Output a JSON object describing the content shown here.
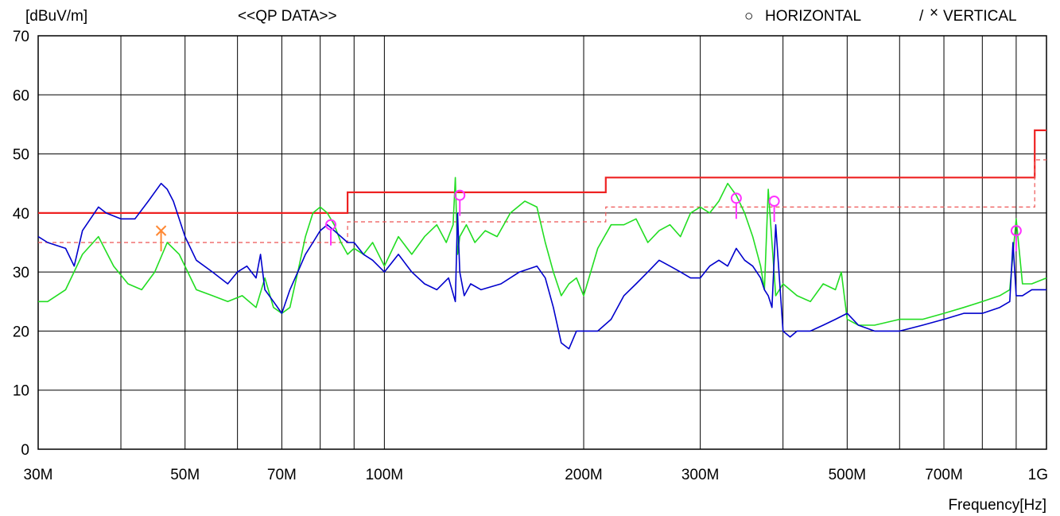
{
  "chart_data": {
    "type": "line",
    "title": "<<QP DATA>>",
    "ylabel": "[dBuV/m]",
    "xlabel": "Frequency[Hz]",
    "x_scale": "log",
    "xlim_mhz": [
      30,
      1000
    ],
    "ylim": [
      0,
      70
    ],
    "y_ticks": [
      0,
      10,
      20,
      30,
      40,
      50,
      60,
      70
    ],
    "x_tick_labels": [
      {
        "mhz": 30,
        "label": "30M"
      },
      {
        "mhz": 50,
        "label": "50M"
      },
      {
        "mhz": 70,
        "label": "70M"
      },
      {
        "mhz": 100,
        "label": "100M"
      },
      {
        "mhz": 200,
        "label": "200M"
      },
      {
        "mhz": 300,
        "label": "300M"
      },
      {
        "mhz": 500,
        "label": "500M"
      },
      {
        "mhz": 700,
        "label": "700M"
      },
      {
        "mhz": 1000,
        "label": "1G"
      }
    ],
    "x_gridlines_mhz": [
      40,
      50,
      60,
      70,
      80,
      90,
      100,
      200,
      300,
      400,
      500,
      600,
      700,
      800,
      900
    ],
    "grid": true,
    "legend": {
      "placement": "top-right",
      "entries": [
        {
          "symbol": "○",
          "label": "HORIZONTAL",
          "color": "#22dd22"
        },
        {
          "symbol": "/",
          "label": "",
          "color": "#0000cc"
        },
        {
          "symbol": "×",
          "label": "VERTICAL",
          "color": "#0000ee"
        }
      ]
    },
    "limit_lines": [
      {
        "style": "solid",
        "color": "#ee2222",
        "points": [
          [
            30,
            40
          ],
          [
            88,
            40
          ],
          [
            88,
            43.5
          ],
          [
            216,
            43.5
          ],
          [
            216,
            46
          ],
          [
            960,
            46
          ],
          [
            960,
            54
          ],
          [
            1000,
            54
          ]
        ]
      },
      {
        "style": "dashed",
        "color": "#ee5555",
        "points": [
          [
            30,
            35
          ],
          [
            88,
            35
          ],
          [
            88,
            38.5
          ],
          [
            216,
            38.5
          ],
          [
            216,
            41
          ],
          [
            960,
            41
          ],
          [
            960,
            49
          ],
          [
            1000,
            49
          ]
        ]
      }
    ],
    "series": [
      {
        "name": "HORIZONTAL",
        "color": "#22dd22",
        "x": [
          30,
          31,
          33,
          35,
          37,
          39,
          41,
          43,
          45,
          47,
          49,
          52,
          55,
          58,
          61,
          64,
          66,
          68,
          70,
          72,
          74,
          76,
          78,
          80,
          82,
          84,
          86,
          88,
          90,
          93,
          96,
          100,
          105,
          110,
          115,
          120,
          124,
          127,
          128,
          129,
          130,
          133,
          137,
          142,
          148,
          155,
          163,
          170,
          175,
          180,
          185,
          190,
          195,
          200,
          210,
          220,
          230,
          240,
          250,
          260,
          270,
          280,
          290,
          300,
          310,
          320,
          330,
          340,
          350,
          360,
          370,
          375,
          380,
          390,
          400,
          420,
          440,
          460,
          480,
          490,
          500,
          520,
          550,
          600,
          650,
          700,
          750,
          800,
          850,
          880,
          900,
          920,
          950,
          1000
        ],
        "y": [
          25,
          25,
          27,
          33,
          36,
          31,
          28,
          27,
          30,
          35,
          33,
          27,
          26,
          25,
          26,
          24,
          29,
          24,
          23,
          24,
          30,
          36,
          40,
          41,
          40,
          38,
          35,
          33,
          34,
          33,
          35,
          31,
          36,
          33,
          36,
          38,
          35,
          38,
          46,
          33,
          36,
          38,
          35,
          37,
          36,
          40,
          42,
          41,
          35,
          30,
          26,
          28,
          29,
          26,
          34,
          38,
          38,
          39,
          35,
          37,
          38,
          36,
          40,
          41,
          40,
          42,
          45,
          43,
          40,
          36,
          31,
          27,
          44,
          26,
          28,
          26,
          25,
          28,
          27,
          30,
          22,
          21,
          21,
          22,
          22,
          23,
          24,
          25,
          26,
          27,
          39,
          28,
          28,
          29
        ]
      },
      {
        "name": "VERTICAL",
        "color": "#0000cc",
        "x": [
          30,
          31,
          33,
          34,
          35,
          37,
          38,
          40,
          42,
          44,
          46,
          47,
          48,
          50,
          52,
          55,
          58,
          60,
          62,
          64,
          65,
          66,
          68,
          70,
          72,
          74,
          76,
          78,
          80,
          82,
          84,
          86,
          88,
          90,
          93,
          96,
          100,
          105,
          110,
          115,
          120,
          125,
          128,
          129,
          130,
          132,
          135,
          140,
          150,
          160,
          170,
          175,
          180,
          185,
          190,
          195,
          200,
          210,
          220,
          230,
          240,
          250,
          260,
          270,
          280,
          290,
          300,
          310,
          320,
          330,
          340,
          350,
          360,
          370,
          375,
          380,
          385,
          390,
          400,
          410,
          420,
          440,
          460,
          480,
          500,
          520,
          550,
          600,
          650,
          700,
          750,
          800,
          850,
          880,
          890,
          900,
          920,
          950,
          1000
        ],
        "y": [
          36,
          35,
          34,
          31,
          37,
          41,
          40,
          39,
          39,
          42,
          45,
          44,
          42,
          36,
          32,
          30,
          28,
          30,
          31,
          29,
          33,
          27,
          25,
          23,
          27,
          30,
          33,
          35,
          37,
          38,
          37,
          36,
          35,
          35,
          33,
          32,
          30,
          33,
          30,
          28,
          27,
          29,
          25,
          40,
          30,
          26,
          28,
          27,
          28,
          30,
          31,
          29,
          24,
          18,
          17,
          20,
          20,
          20,
          22,
          26,
          28,
          30,
          32,
          31,
          30,
          29,
          29,
          31,
          32,
          31,
          34,
          32,
          31,
          29,
          27,
          26,
          24,
          38,
          20,
          19,
          20,
          20,
          21,
          22,
          23,
          21,
          20,
          20,
          21,
          22,
          23,
          23,
          24,
          25,
          35,
          26,
          26,
          27,
          27
        ]
      }
    ],
    "markers": [
      {
        "type": "circle",
        "x": 83,
        "y": 38,
        "color": "#ff33ff"
      },
      {
        "type": "circle",
        "x": 130,
        "y": 43,
        "color": "#ff33ff"
      },
      {
        "type": "circle",
        "x": 340,
        "y": 42.5,
        "color": "#ff33ff"
      },
      {
        "type": "circle",
        "x": 388,
        "y": 42,
        "color": "#ff33ff"
      },
      {
        "type": "circle",
        "x": 900,
        "y": 37,
        "color": "#ff33ff"
      },
      {
        "type": "cross",
        "x": 46,
        "y": 37,
        "color": "#ff8833"
      }
    ]
  }
}
